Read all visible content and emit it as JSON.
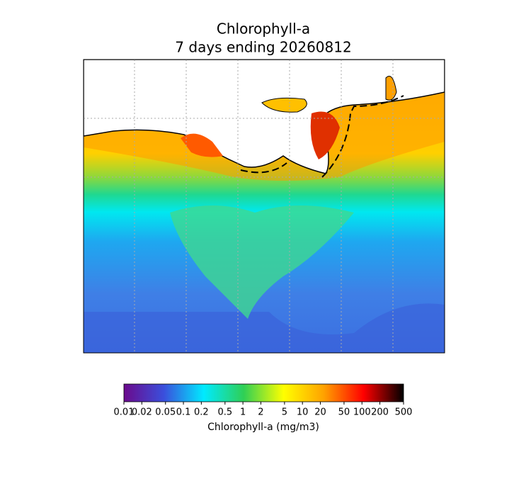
{
  "title": [
    "Chlorophyll-a",
    "7 days ending 20260812"
  ],
  "colorbar": {
    "label": "Chlorophyll-a (mg/m3)",
    "scale": "log",
    "lim": [
      0.01,
      500
    ],
    "ticks": [
      0.01,
      0.02,
      0.05,
      0.1,
      0.2,
      0.5,
      1,
      2,
      5,
      10,
      20,
      50,
      100,
      200,
      500
    ],
    "colors": [
      "#6b0a8c",
      "#3a4fdc",
      "#00eaff",
      "#2fcf55",
      "#ffff00",
      "#ffa200",
      "#ff0000",
      "#000000"
    ]
  }
}
